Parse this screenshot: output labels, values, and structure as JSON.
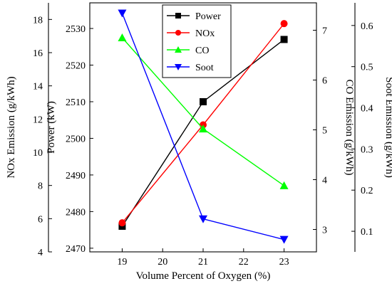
{
  "chart_data": {
    "type": "line",
    "xlabel": "Volume Percent of Oxygen (%)",
    "x": [
      19,
      21,
      23
    ],
    "xticks": [
      19,
      20,
      21,
      22,
      23
    ],
    "xlim": [
      18.2,
      23.8
    ],
    "axes": {
      "nox": {
        "label": "NOx Emission (g/kWh)",
        "ylim": [
          4,
          19
        ],
        "ticks": [
          4,
          6,
          8,
          10,
          12,
          14,
          16,
          18
        ],
        "position": "left-outer"
      },
      "power": {
        "label": "Power (kW)",
        "ylim": [
          2469,
          2537
        ],
        "ticks": [
          2470,
          2480,
          2490,
          2500,
          2510,
          2520,
          2530
        ],
        "position": "left-inner"
      },
      "co": {
        "label": "CO Emission (g/kWh)",
        "ylim": [
          2.55,
          7.55
        ],
        "ticks": [
          3,
          4,
          5,
          6,
          7
        ],
        "position": "right-inner"
      },
      "soot": {
        "label": "Soot Emission (g/kWh)",
        "ylim": [
          0.05,
          0.655
        ],
        "ticks": [
          0.1,
          0.2,
          0.3,
          0.4,
          0.5,
          0.6
        ],
        "position": "right-outer"
      }
    },
    "series": [
      {
        "name": "Power",
        "axis": "power",
        "values": [
          2476,
          2510,
          2527
        ],
        "color": "#000000",
        "marker": "square"
      },
      {
        "name": "NOx",
        "axis": "nox",
        "values": [
          5.75,
          11.65,
          17.75
        ],
        "color": "#ff0000",
        "marker": "circle"
      },
      {
        "name": "CO",
        "axis": "co",
        "values": [
          6.85,
          5.02,
          3.88
        ],
        "color": "#00ff00",
        "marker": "triangle-up"
      },
      {
        "name": "Soot",
        "axis": "soot",
        "values": [
          0.63,
          0.13,
          0.08
        ],
        "color": "#0000ff",
        "marker": "triangle-down"
      }
    ],
    "legend": {
      "placement": "top-center"
    },
    "grid": false
  }
}
